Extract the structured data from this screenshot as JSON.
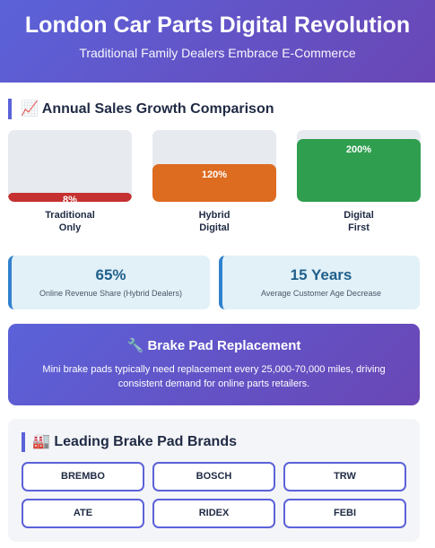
{
  "header": {
    "title": "London Car Parts Digital Revolution",
    "subtitle": "Traditional Family Dealers Embrace E-Commerce"
  },
  "sales_section": {
    "icon": "📈",
    "title": "Annual Sales Growth Comparison"
  },
  "chart_data": {
    "type": "bar",
    "title": "Annual Sales Growth Comparison",
    "categories": [
      "Traditional\nOnly",
      "Hybrid\nDigital",
      "Digital\nFirst"
    ],
    "values": [
      8,
      120,
      200
    ],
    "value_labels": [
      "8%",
      "120%",
      "200%"
    ],
    "unit": "%",
    "colors": [
      "#c53030",
      "#dd6b20",
      "#2f9e4f"
    ],
    "ylim": [
      0,
      230
    ]
  },
  "stats": [
    {
      "value": "65%",
      "label": "Online Revenue Share (Hybrid Dealers)"
    },
    {
      "value": "15 Years",
      "label": "Average Customer Age Decrease"
    }
  ],
  "info": {
    "icon": "🔧",
    "title": "Brake Pad Replacement",
    "text": "Mini brake pads typically need replacement every 25,000-70,000 miles, driving consistent demand for online parts retailers."
  },
  "brands_section": {
    "icon": "🏭",
    "title": "Leading Brake Pad Brands",
    "items": [
      "BREMBO",
      "BOSCH",
      "TRW",
      "ATE",
      "RIDEX",
      "FEBI"
    ]
  }
}
